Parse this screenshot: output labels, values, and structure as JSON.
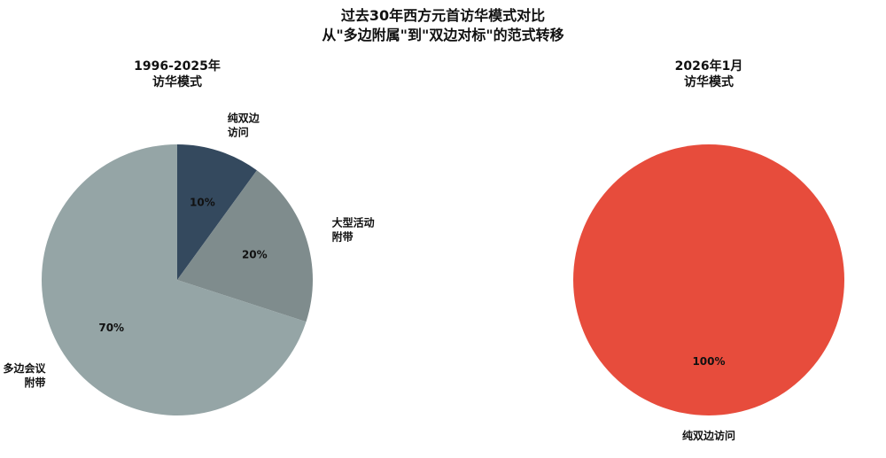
{
  "title_line1": "过去30年西方元首访华模式对比",
  "title_line2": "从\"多边附属\"到\"双边对标\"的范式转移",
  "chart_data": [
    {
      "type": "pie",
      "title_line1": "1996-2025年",
      "title_line2": "访华模式",
      "slices": [
        {
          "label_lines": [
            "纯双边",
            "访问"
          ],
          "value": 10,
          "pct_label": "10%",
          "color": "#34495e"
        },
        {
          "label_lines": [
            "大型活动",
            "附带"
          ],
          "value": 20,
          "pct_label": "20%",
          "color": "#7f8c8d"
        },
        {
          "label_lines": [
            "多边会议",
            "附带"
          ],
          "value": 70,
          "pct_label": "70%",
          "color": "#95a5a6"
        }
      ]
    },
    {
      "type": "pie",
      "title_line1": "2026年1月",
      "title_line2": "访华模式",
      "slices": [
        {
          "label_lines": [
            "纯双边访问"
          ],
          "value": 100,
          "pct_label": "100%",
          "color": "#e74c3c"
        }
      ]
    }
  ]
}
